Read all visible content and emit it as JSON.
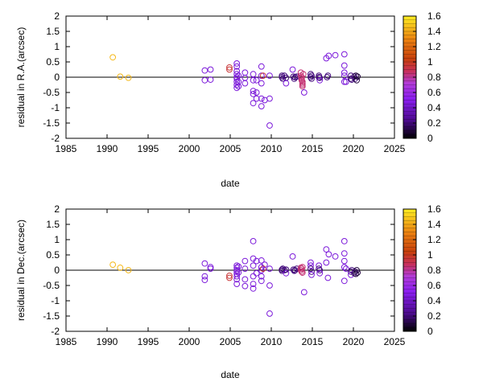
{
  "chart_data": [
    {
      "type": "scatter",
      "xlabel": "date",
      "ylabel": "residual in R.A.(arcsec)",
      "xlim": [
        1985,
        2025
      ],
      "ylim": [
        -2,
        2
      ],
      "xticks": [
        "1985",
        "1990",
        "1995",
        "2000",
        "2005",
        "2010",
        "2015",
        "2020",
        "2025"
      ],
      "yticks": [
        "-2",
        "-1.5",
        "-1",
        "-0.5",
        "0",
        "0.5",
        "1",
        "1.5",
        "2"
      ],
      "colorbar": {
        "min": 0,
        "max": 1.6,
        "ticks": [
          "0",
          "0.2",
          "0.4",
          "0.6",
          "0.8",
          "1",
          "1.2",
          "1.4",
          "1.6"
        ]
      },
      "points": [
        {
          "x": 1990.7,
          "y": 0.65,
          "c": 1.45
        },
        {
          "x": 1991.6,
          "y": 0.02,
          "c": 1.45
        },
        {
          "x": 1992.6,
          "y": -0.02,
          "c": 1.45
        },
        {
          "x": 2001.9,
          "y": 0.22,
          "c": 0.45
        },
        {
          "x": 2001.9,
          "y": -0.1,
          "c": 0.45
        },
        {
          "x": 2002.6,
          "y": 0.25,
          "c": 0.45
        },
        {
          "x": 2002.6,
          "y": -0.08,
          "c": 0.45
        },
        {
          "x": 2004.9,
          "y": 0.32,
          "c": 0.95
        },
        {
          "x": 2004.9,
          "y": 0.25,
          "c": 0.95
        },
        {
          "x": 2005.8,
          "y": 0.45,
          "c": 0.45
        },
        {
          "x": 2005.8,
          "y": 0.35,
          "c": 0.45
        },
        {
          "x": 2005.8,
          "y": 0.2,
          "c": 0.45
        },
        {
          "x": 2005.8,
          "y": 0.1,
          "c": 0.45
        },
        {
          "x": 2005.8,
          "y": 0.0,
          "c": 0.45
        },
        {
          "x": 2005.8,
          "y": -0.05,
          "c": 0.45
        },
        {
          "x": 2005.8,
          "y": -0.15,
          "c": 0.45
        },
        {
          "x": 2005.8,
          "y": -0.25,
          "c": 0.45
        },
        {
          "x": 2005.8,
          "y": -0.35,
          "c": 0.45
        },
        {
          "x": 2006.0,
          "y": 0.05,
          "c": 0.45
        },
        {
          "x": 2006.0,
          "y": -0.3,
          "c": 0.45
        },
        {
          "x": 2006.0,
          "y": -0.15,
          "c": 0.45
        },
        {
          "x": 2006.8,
          "y": 0.15,
          "c": 0.45
        },
        {
          "x": 2006.8,
          "y": -0.02,
          "c": 0.45
        },
        {
          "x": 2006.8,
          "y": -0.2,
          "c": 0.45
        },
        {
          "x": 2007.8,
          "y": 0.1,
          "c": 0.45
        },
        {
          "x": 2007.8,
          "y": -0.1,
          "c": 0.45
        },
        {
          "x": 2007.8,
          "y": -0.45,
          "c": 0.45
        },
        {
          "x": 2007.8,
          "y": -0.55,
          "c": 0.45
        },
        {
          "x": 2007.8,
          "y": -0.85,
          "c": 0.45
        },
        {
          "x": 2008.2,
          "y": -0.1,
          "c": 0.45
        },
        {
          "x": 2008.2,
          "y": -0.5,
          "c": 0.45
        },
        {
          "x": 2008.2,
          "y": -0.7,
          "c": 0.45
        },
        {
          "x": 2008.8,
          "y": 0.35,
          "c": 0.45
        },
        {
          "x": 2008.8,
          "y": 0.05,
          "c": 0.45
        },
        {
          "x": 2008.8,
          "y": -0.2,
          "c": 0.45
        },
        {
          "x": 2008.8,
          "y": -0.7,
          "c": 0.45
        },
        {
          "x": 2008.8,
          "y": -0.95,
          "c": 0.45
        },
        {
          "x": 2009.0,
          "y": 0.05,
          "c": 0.95
        },
        {
          "x": 2009.2,
          "y": -0.75,
          "c": 0.45
        },
        {
          "x": 2009.8,
          "y": -0.7,
          "c": 0.45
        },
        {
          "x": 2009.8,
          "y": -1.58,
          "c": 0.45
        },
        {
          "x": 2009.8,
          "y": 0.05,
          "c": 0.45
        },
        {
          "x": 2011.3,
          "y": 0.05,
          "c": 0.2
        },
        {
          "x": 2011.3,
          "y": 0.0,
          "c": 0.2
        },
        {
          "x": 2011.4,
          "y": -0.05,
          "c": 0.2
        },
        {
          "x": 2011.6,
          "y": 0.05,
          "c": 0.2
        },
        {
          "x": 2011.8,
          "y": -0.02,
          "c": 0.2
        },
        {
          "x": 2011.8,
          "y": -0.2,
          "c": 0.45
        },
        {
          "x": 2012.6,
          "y": 0.25,
          "c": 0.45
        },
        {
          "x": 2012.7,
          "y": 0.02,
          "c": 0.2
        },
        {
          "x": 2012.8,
          "y": -0.05,
          "c": 0.2
        },
        {
          "x": 2012.9,
          "y": 0.0,
          "c": 0.2
        },
        {
          "x": 2013.1,
          "y": 0.02,
          "c": 0.2
        },
        {
          "x": 2013.6,
          "y": 0.15,
          "c": 0.85
        },
        {
          "x": 2013.6,
          "y": 0.05,
          "c": 0.85
        },
        {
          "x": 2013.7,
          "y": 0.0,
          "c": 0.85
        },
        {
          "x": 2013.7,
          "y": -0.05,
          "c": 0.85
        },
        {
          "x": 2013.7,
          "y": -0.1,
          "c": 0.85
        },
        {
          "x": 2013.8,
          "y": -0.15,
          "c": 0.85
        },
        {
          "x": 2013.8,
          "y": -0.2,
          "c": 0.85
        },
        {
          "x": 2013.8,
          "y": -0.25,
          "c": 0.85
        },
        {
          "x": 2013.8,
          "y": -0.3,
          "c": 0.85
        },
        {
          "x": 2013.9,
          "y": 0.1,
          "c": 0.85
        },
        {
          "x": 2014.0,
          "y": -0.5,
          "c": 0.45
        },
        {
          "x": 2014.8,
          "y": 0.1,
          "c": 0.2
        },
        {
          "x": 2014.8,
          "y": 0.0,
          "c": 0.2
        },
        {
          "x": 2014.9,
          "y": -0.05,
          "c": 0.2
        },
        {
          "x": 2014.9,
          "y": 0.05,
          "c": 0.2
        },
        {
          "x": 2015.8,
          "y": 0.0,
          "c": 0.2
        },
        {
          "x": 2015.8,
          "y": 0.05,
          "c": 0.2
        },
        {
          "x": 2015.9,
          "y": -0.1,
          "c": 0.45
        },
        {
          "x": 2015.9,
          "y": -0.02,
          "c": 0.2
        },
        {
          "x": 2016.7,
          "y": 0.62,
          "c": 0.45
        },
        {
          "x": 2016.8,
          "y": 0.0,
          "c": 0.2
        },
        {
          "x": 2016.9,
          "y": 0.05,
          "c": 0.2
        },
        {
          "x": 2017.0,
          "y": 0.7,
          "c": 0.45
        },
        {
          "x": 2017.8,
          "y": 0.72,
          "c": 0.45
        },
        {
          "x": 2018.9,
          "y": 0.75,
          "c": 0.45
        },
        {
          "x": 2018.9,
          "y": 0.38,
          "c": 0.45
        },
        {
          "x": 2018.9,
          "y": 0.15,
          "c": 0.45
        },
        {
          "x": 2018.9,
          "y": 0.05,
          "c": 0.45
        },
        {
          "x": 2018.9,
          "y": -0.15,
          "c": 0.45
        },
        {
          "x": 2019.1,
          "y": -0.15,
          "c": 0.45
        },
        {
          "x": 2019.7,
          "y": 0.05,
          "c": 0.2
        },
        {
          "x": 2019.7,
          "y": -0.05,
          "c": 0.2
        },
        {
          "x": 2019.8,
          "y": -0.08,
          "c": 0.2
        },
        {
          "x": 2020.1,
          "y": 0.02,
          "c": 0.2
        },
        {
          "x": 2020.2,
          "y": -0.05,
          "c": 0.2
        },
        {
          "x": 2020.3,
          "y": 0.05,
          "c": 0.1
        },
        {
          "x": 2020.4,
          "y": -0.1,
          "c": 0.1
        },
        {
          "x": 2020.5,
          "y": 0.02,
          "c": 0.1
        }
      ]
    },
    {
      "type": "scatter",
      "xlabel": "date",
      "ylabel": "residual in Dec.(arcsec)",
      "xlim": [
        1985,
        2025
      ],
      "ylim": [
        -2,
        2
      ],
      "xticks": [
        "1985",
        "1990",
        "1995",
        "2000",
        "2005",
        "2010",
        "2015",
        "2020",
        "2025"
      ],
      "yticks": [
        "-2",
        "-1.5",
        "-1",
        "-0.5",
        "0",
        "0.5",
        "1",
        "1.5",
        "2"
      ],
      "colorbar": {
        "min": 0,
        "max": 1.6,
        "ticks": [
          "0",
          "0.2",
          "0.4",
          "0.6",
          "0.8",
          "1",
          "1.2",
          "1.4",
          "1.6"
        ]
      },
      "points": [
        {
          "x": 1990.7,
          "y": 0.18,
          "c": 1.45
        },
        {
          "x": 1991.6,
          "y": 0.08,
          "c": 1.45
        },
        {
          "x": 1992.6,
          "y": 0.0,
          "c": 1.45
        },
        {
          "x": 2001.9,
          "y": 0.22,
          "c": 0.45
        },
        {
          "x": 2001.9,
          "y": -0.2,
          "c": 0.45
        },
        {
          "x": 2001.9,
          "y": -0.32,
          "c": 0.45
        },
        {
          "x": 2002.6,
          "y": 0.1,
          "c": 0.45
        },
        {
          "x": 2002.6,
          "y": 0.05,
          "c": 0.45
        },
        {
          "x": 2004.9,
          "y": -0.18,
          "c": 0.95
        },
        {
          "x": 2004.9,
          "y": -0.25,
          "c": 0.95
        },
        {
          "x": 2005.8,
          "y": 0.15,
          "c": 0.45
        },
        {
          "x": 2005.8,
          "y": 0.08,
          "c": 0.45
        },
        {
          "x": 2005.8,
          "y": 0.0,
          "c": 0.45
        },
        {
          "x": 2005.8,
          "y": -0.05,
          "c": 0.45
        },
        {
          "x": 2005.8,
          "y": -0.12,
          "c": 0.45
        },
        {
          "x": 2005.8,
          "y": -0.2,
          "c": 0.45
        },
        {
          "x": 2005.8,
          "y": -0.3,
          "c": 0.45
        },
        {
          "x": 2005.8,
          "y": -0.45,
          "c": 0.45
        },
        {
          "x": 2006.0,
          "y": 0.12,
          "c": 0.45
        },
        {
          "x": 2006.0,
          "y": -0.08,
          "c": 0.45
        },
        {
          "x": 2006.8,
          "y": 0.3,
          "c": 0.45
        },
        {
          "x": 2006.8,
          "y": 0.05,
          "c": 0.45
        },
        {
          "x": 2006.8,
          "y": -0.3,
          "c": 0.45
        },
        {
          "x": 2006.8,
          "y": -0.52,
          "c": 0.45
        },
        {
          "x": 2007.8,
          "y": 0.95,
          "c": 0.45
        },
        {
          "x": 2007.8,
          "y": 0.38,
          "c": 0.45
        },
        {
          "x": 2007.8,
          "y": 0.15,
          "c": 0.45
        },
        {
          "x": 2007.8,
          "y": -0.2,
          "c": 0.45
        },
        {
          "x": 2007.8,
          "y": -0.45,
          "c": 0.45
        },
        {
          "x": 2007.8,
          "y": -0.6,
          "c": 0.45
        },
        {
          "x": 2008.2,
          "y": 0.3,
          "c": 0.45
        },
        {
          "x": 2008.2,
          "y": -0.1,
          "c": 0.45
        },
        {
          "x": 2008.8,
          "y": 0.32,
          "c": 0.45
        },
        {
          "x": 2008.8,
          "y": 0.1,
          "c": 0.45
        },
        {
          "x": 2008.8,
          "y": 0.0,
          "c": 0.45
        },
        {
          "x": 2008.8,
          "y": -0.2,
          "c": 0.45
        },
        {
          "x": 2008.8,
          "y": -0.35,
          "c": 0.45
        },
        {
          "x": 2009.0,
          "y": 0.05,
          "c": 0.95
        },
        {
          "x": 2009.2,
          "y": 0.18,
          "c": 0.45
        },
        {
          "x": 2009.8,
          "y": -0.5,
          "c": 0.45
        },
        {
          "x": 2009.8,
          "y": -1.42,
          "c": 0.45
        },
        {
          "x": 2009.8,
          "y": 0.05,
          "c": 0.45
        },
        {
          "x": 2011.3,
          "y": 0.02,
          "c": 0.2
        },
        {
          "x": 2011.3,
          "y": -0.02,
          "c": 0.2
        },
        {
          "x": 2011.4,
          "y": 0.05,
          "c": 0.2
        },
        {
          "x": 2011.6,
          "y": 0.0,
          "c": 0.2
        },
        {
          "x": 2011.8,
          "y": -0.1,
          "c": 0.45
        },
        {
          "x": 2011.8,
          "y": 0.02,
          "c": 0.2
        },
        {
          "x": 2012.6,
          "y": 0.45,
          "c": 0.45
        },
        {
          "x": 2012.7,
          "y": 0.02,
          "c": 0.2
        },
        {
          "x": 2012.8,
          "y": -0.02,
          "c": 0.2
        },
        {
          "x": 2012.9,
          "y": 0.0,
          "c": 0.2
        },
        {
          "x": 2013.1,
          "y": 0.05,
          "c": 0.2
        },
        {
          "x": 2013.6,
          "y": 0.08,
          "c": 0.85
        },
        {
          "x": 2013.6,
          "y": 0.0,
          "c": 0.85
        },
        {
          "x": 2013.7,
          "y": -0.05,
          "c": 0.85
        },
        {
          "x": 2013.7,
          "y": 0.05,
          "c": 0.85
        },
        {
          "x": 2013.8,
          "y": -0.08,
          "c": 0.85
        },
        {
          "x": 2013.8,
          "y": 0.1,
          "c": 0.85
        },
        {
          "x": 2014.0,
          "y": -0.72,
          "c": 0.45
        },
        {
          "x": 2014.8,
          "y": 0.25,
          "c": 0.45
        },
        {
          "x": 2014.8,
          "y": 0.15,
          "c": 0.45
        },
        {
          "x": 2014.8,
          "y": 0.05,
          "c": 0.2
        },
        {
          "x": 2014.9,
          "y": -0.05,
          "c": 0.2
        },
        {
          "x": 2014.9,
          "y": -0.15,
          "c": 0.45
        },
        {
          "x": 2015.8,
          "y": 0.15,
          "c": 0.45
        },
        {
          "x": 2015.8,
          "y": 0.05,
          "c": 0.2
        },
        {
          "x": 2015.9,
          "y": 0.0,
          "c": 0.2
        },
        {
          "x": 2015.9,
          "y": -0.1,
          "c": 0.45
        },
        {
          "x": 2016.7,
          "y": 0.68,
          "c": 0.45
        },
        {
          "x": 2016.7,
          "y": 0.25,
          "c": 0.45
        },
        {
          "x": 2016.9,
          "y": -0.25,
          "c": 0.45
        },
        {
          "x": 2017.0,
          "y": 0.52,
          "c": 0.45
        },
        {
          "x": 2017.8,
          "y": 0.45,
          "c": 0.45
        },
        {
          "x": 2018.9,
          "y": 0.95,
          "c": 0.45
        },
        {
          "x": 2018.9,
          "y": 0.55,
          "c": 0.45
        },
        {
          "x": 2018.9,
          "y": 0.3,
          "c": 0.45
        },
        {
          "x": 2018.9,
          "y": 0.1,
          "c": 0.45
        },
        {
          "x": 2018.9,
          "y": -0.35,
          "c": 0.45
        },
        {
          "x": 2019.1,
          "y": 0.05,
          "c": 0.45
        },
        {
          "x": 2019.7,
          "y": -0.05,
          "c": 0.2
        },
        {
          "x": 2019.7,
          "y": -0.15,
          "c": 0.45
        },
        {
          "x": 2019.8,
          "y": 0.0,
          "c": 0.2
        },
        {
          "x": 2020.1,
          "y": -0.1,
          "c": 0.2
        },
        {
          "x": 2020.2,
          "y": -0.05,
          "c": 0.2
        },
        {
          "x": 2020.3,
          "y": -0.12,
          "c": 0.1
        },
        {
          "x": 2020.4,
          "y": 0.0,
          "c": 0.1
        },
        {
          "x": 2020.5,
          "y": -0.08,
          "c": 0.1
        }
      ]
    }
  ]
}
